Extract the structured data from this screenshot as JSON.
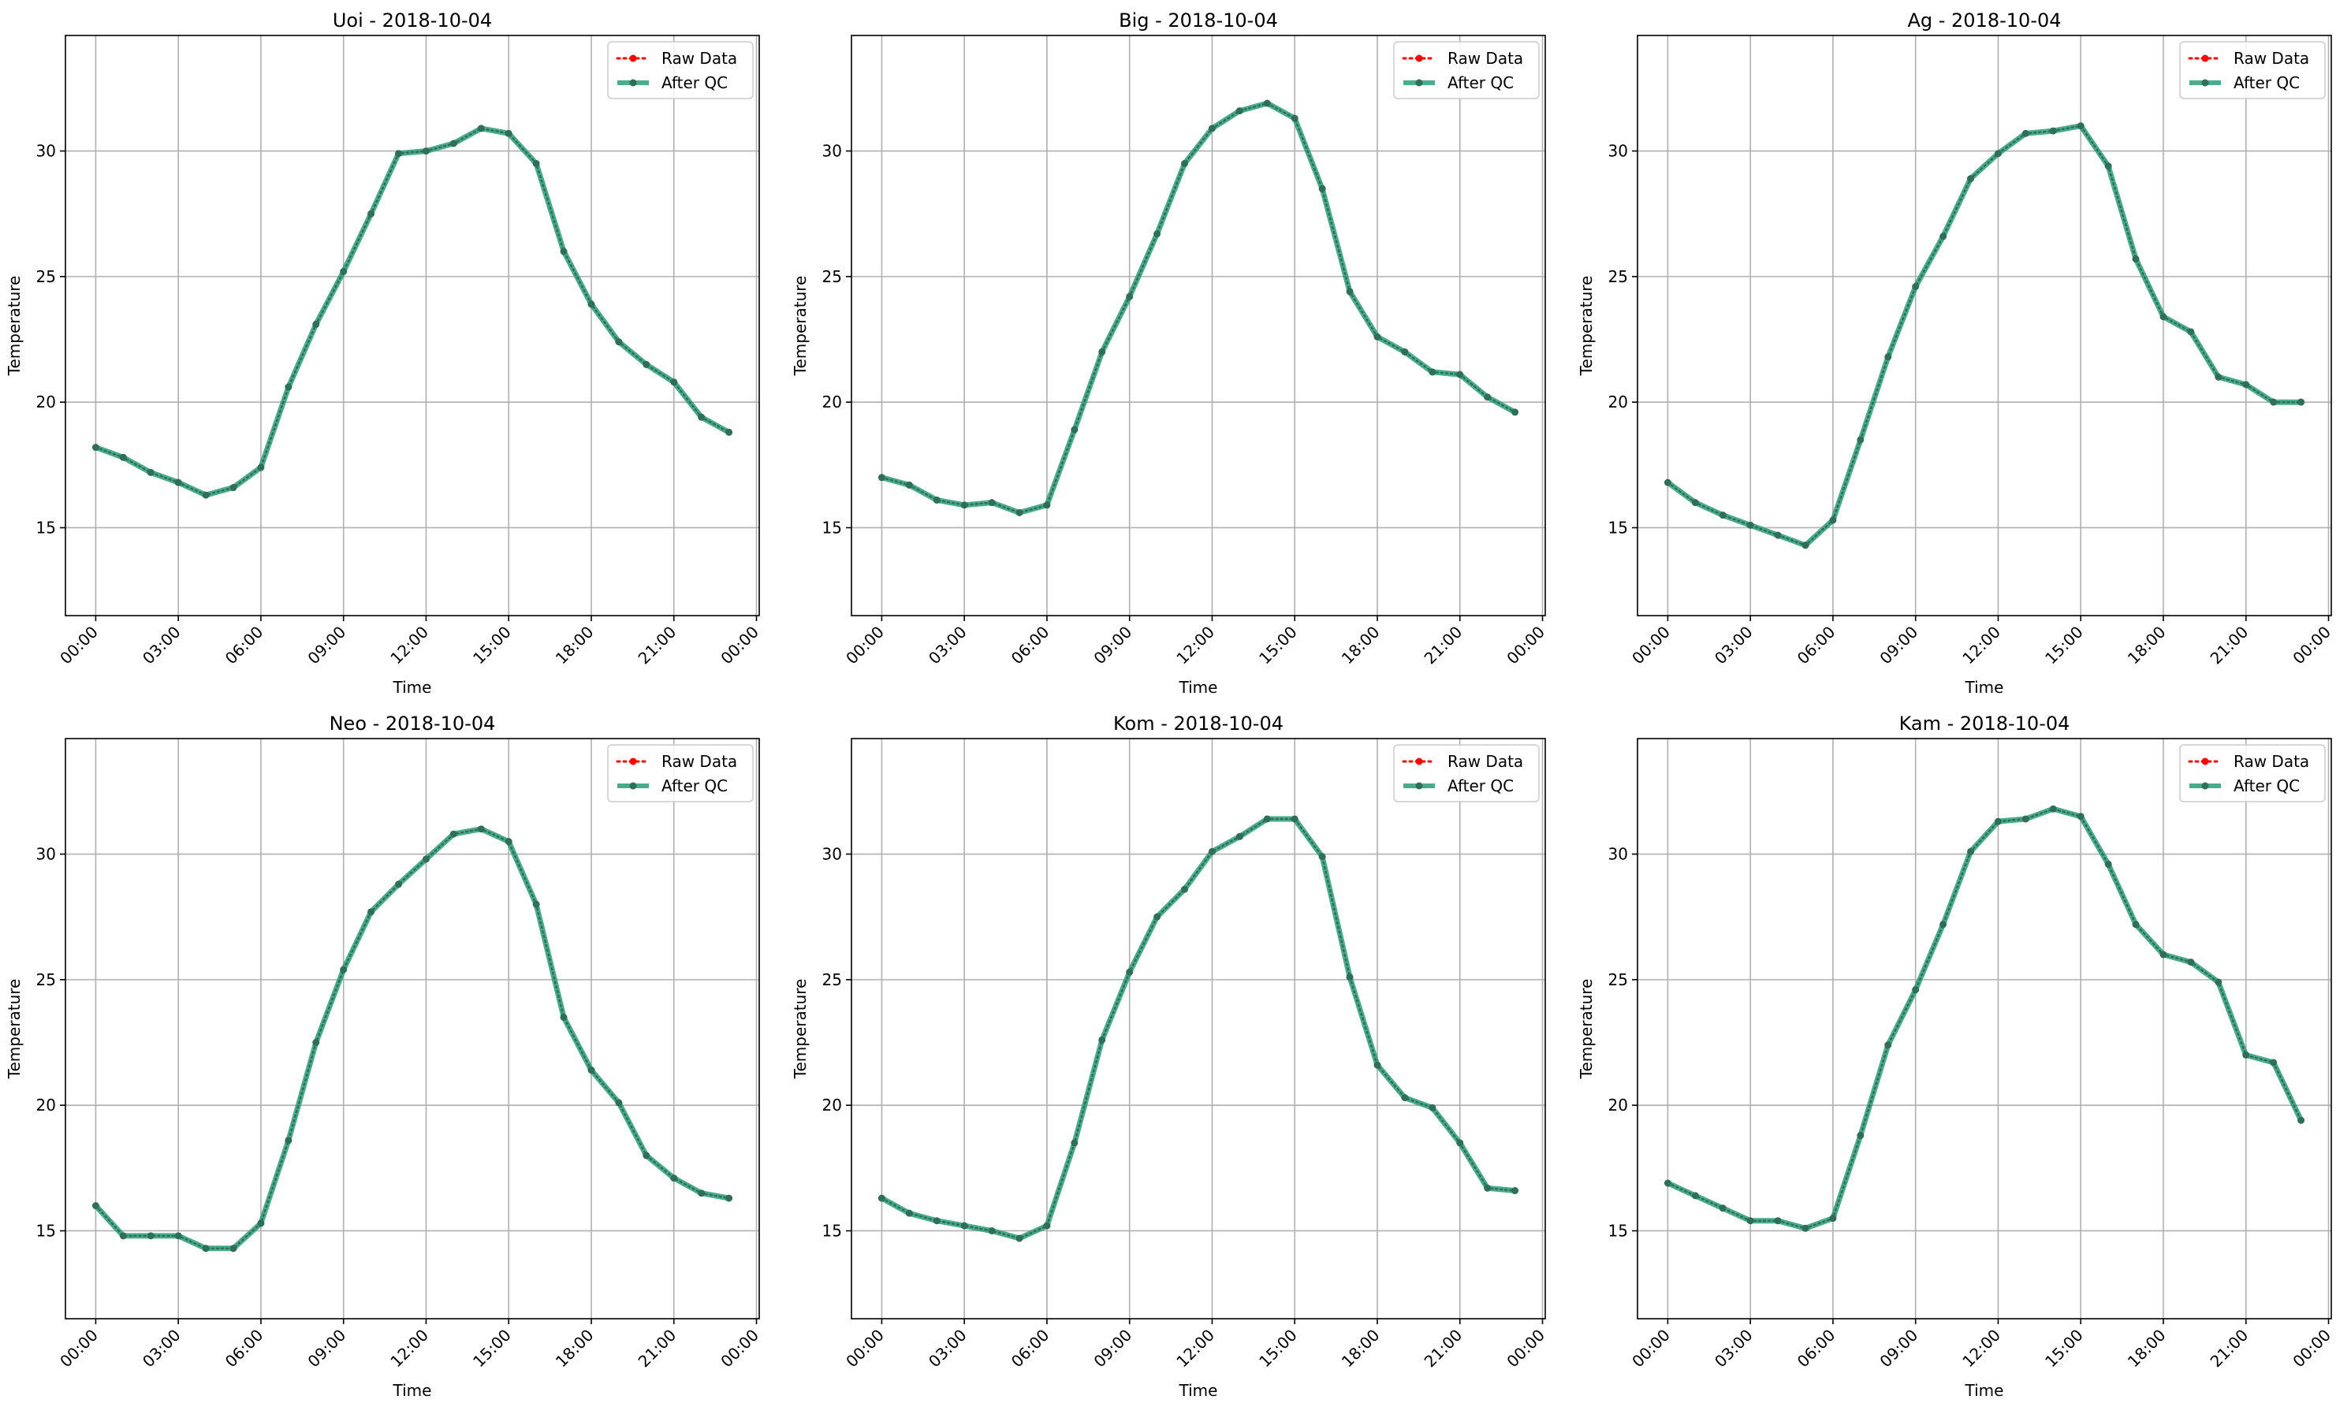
{
  "figure": {
    "style": {
      "raw_color": "#ff0000",
      "qc_color": "#2a9d78",
      "marker_color": "#2f6f5a",
      "grid_color": "#b0b0b0"
    }
  },
  "chart_data": [
    {
      "type": "line",
      "title": "Uoi - 2018-10-04",
      "xlabel": "Time",
      "ylabel": "Temperature",
      "x_unit": "hour",
      "xlim": [
        -1.1,
        24.1
      ],
      "ylim": [
        11.5,
        34.6
      ],
      "xtick_values": [
        0,
        3,
        6,
        9,
        12,
        15,
        18,
        21,
        24
      ],
      "xticks": [
        "00:00",
        "03:00",
        "06:00",
        "09:00",
        "12:00",
        "15:00",
        "18:00",
        "21:00",
        "00:00"
      ],
      "yticks": [
        15,
        20,
        25,
        30
      ],
      "grid": true,
      "legend": "top-right",
      "x": [
        0,
        1,
        2,
        3,
        4,
        5,
        6,
        7,
        8,
        9,
        10,
        11,
        12,
        13,
        14,
        15,
        16,
        17,
        18,
        19,
        20,
        21,
        22,
        23
      ],
      "series": [
        {
          "name": "Raw Data",
          "style": "dotted",
          "values": [
            18.2,
            17.8,
            17.2,
            16.8,
            16.3,
            16.6,
            17.4,
            20.6,
            23.1,
            25.2,
            27.5,
            29.9,
            30.0,
            30.3,
            30.9,
            30.7,
            29.5,
            26.0,
            23.9,
            22.4,
            21.5,
            20.8,
            19.4,
            18.8
          ]
        },
        {
          "name": "After QC",
          "style": "solid",
          "values": [
            18.2,
            17.8,
            17.2,
            16.8,
            16.3,
            16.6,
            17.4,
            20.6,
            23.1,
            25.2,
            27.5,
            29.9,
            30.0,
            30.3,
            30.9,
            30.7,
            29.5,
            26.0,
            23.9,
            22.4,
            21.5,
            20.8,
            19.4,
            18.8
          ]
        }
      ]
    },
    {
      "type": "line",
      "title": "Big - 2018-10-04",
      "xlabel": "Time",
      "ylabel": "Temperature",
      "x_unit": "hour",
      "xlim": [
        -1.1,
        24.1
      ],
      "ylim": [
        11.5,
        34.6
      ],
      "xtick_values": [
        0,
        3,
        6,
        9,
        12,
        15,
        18,
        21,
        24
      ],
      "xticks": [
        "00:00",
        "03:00",
        "06:00",
        "09:00",
        "12:00",
        "15:00",
        "18:00",
        "21:00",
        "00:00"
      ],
      "yticks": [
        15,
        20,
        25,
        30
      ],
      "grid": true,
      "legend": "top-right",
      "x": [
        0,
        1,
        2,
        3,
        4,
        5,
        6,
        7,
        8,
        9,
        10,
        11,
        12,
        13,
        14,
        15,
        16,
        17,
        18,
        19,
        20,
        21,
        22,
        23
      ],
      "series": [
        {
          "name": "Raw Data",
          "style": "dotted",
          "values": [
            17.0,
            16.7,
            16.1,
            15.9,
            16.0,
            15.6,
            15.9,
            18.9,
            22.0,
            24.2,
            26.7,
            29.5,
            30.9,
            31.6,
            31.9,
            31.3,
            28.5,
            24.4,
            22.6,
            22.0,
            21.2,
            21.1,
            20.2,
            19.6
          ]
        },
        {
          "name": "After QC",
          "style": "solid",
          "values": [
            17.0,
            16.7,
            16.1,
            15.9,
            16.0,
            15.6,
            15.9,
            18.9,
            22.0,
            24.2,
            26.7,
            29.5,
            30.9,
            31.6,
            31.9,
            31.3,
            28.5,
            24.4,
            22.6,
            22.0,
            21.2,
            21.1,
            20.2,
            19.6
          ]
        }
      ]
    },
    {
      "type": "line",
      "title": "Ag - 2018-10-04",
      "xlabel": "Time",
      "ylabel": "Temperature",
      "x_unit": "hour",
      "xlim": [
        -1.1,
        24.1
      ],
      "ylim": [
        11.5,
        34.6
      ],
      "xtick_values": [
        0,
        3,
        6,
        9,
        12,
        15,
        18,
        21,
        24
      ],
      "xticks": [
        "00:00",
        "03:00",
        "06:00",
        "09:00",
        "12:00",
        "15:00",
        "18:00",
        "21:00",
        "00:00"
      ],
      "yticks": [
        15,
        20,
        25,
        30
      ],
      "grid": true,
      "legend": "top-right",
      "x": [
        0,
        1,
        2,
        3,
        4,
        5,
        6,
        7,
        8,
        9,
        10,
        11,
        12,
        13,
        14,
        15,
        16,
        17,
        18,
        19,
        20,
        21,
        22,
        23
      ],
      "series": [
        {
          "name": "Raw Data",
          "style": "dotted",
          "values": [
            16.8,
            16.0,
            15.5,
            15.1,
            14.7,
            14.3,
            15.3,
            18.5,
            21.8,
            24.6,
            26.6,
            28.9,
            29.9,
            30.7,
            30.8,
            31.0,
            29.4,
            25.7,
            23.4,
            22.8,
            21.0,
            20.7,
            20.0,
            20.0
          ]
        },
        {
          "name": "After QC",
          "style": "solid",
          "values": [
            16.8,
            16.0,
            15.5,
            15.1,
            14.7,
            14.3,
            15.3,
            18.5,
            21.8,
            24.6,
            26.6,
            28.9,
            29.9,
            30.7,
            30.8,
            31.0,
            29.4,
            25.7,
            23.4,
            22.8,
            21.0,
            20.7,
            20.0,
            20.0
          ]
        }
      ]
    },
    {
      "type": "line",
      "title": "Neo - 2018-10-04",
      "xlabel": "Time",
      "ylabel": "Temperature",
      "x_unit": "hour",
      "xlim": [
        -1.1,
        24.1
      ],
      "ylim": [
        11.5,
        34.6
      ],
      "xtick_values": [
        0,
        3,
        6,
        9,
        12,
        15,
        18,
        21,
        24
      ],
      "xticks": [
        "00:00",
        "03:00",
        "06:00",
        "09:00",
        "12:00",
        "15:00",
        "18:00",
        "21:00",
        "00:00"
      ],
      "yticks": [
        15,
        20,
        25,
        30
      ],
      "grid": true,
      "legend": "top-right",
      "x": [
        0,
        1,
        2,
        3,
        4,
        5,
        6,
        7,
        8,
        9,
        10,
        11,
        12,
        13,
        14,
        15,
        16,
        17,
        18,
        19,
        20,
        21,
        22,
        23
      ],
      "series": [
        {
          "name": "Raw Data",
          "style": "dotted",
          "values": [
            16.0,
            14.8,
            14.8,
            14.8,
            14.3,
            14.3,
            15.3,
            18.6,
            22.5,
            25.4,
            27.7,
            28.8,
            29.8,
            30.8,
            31.0,
            30.5,
            28.0,
            23.5,
            21.4,
            20.1,
            18.0,
            17.1,
            16.5,
            16.3
          ]
        },
        {
          "name": "After QC",
          "style": "solid",
          "values": [
            16.0,
            14.8,
            14.8,
            14.8,
            14.3,
            14.3,
            15.3,
            18.6,
            22.5,
            25.4,
            27.7,
            28.8,
            29.8,
            30.8,
            31.0,
            30.5,
            28.0,
            23.5,
            21.4,
            20.1,
            18.0,
            17.1,
            16.5,
            16.3
          ]
        }
      ]
    },
    {
      "type": "line",
      "title": "Kom - 2018-10-04",
      "xlabel": "Time",
      "ylabel": "Temperature",
      "x_unit": "hour",
      "xlim": [
        -1.1,
        24.1
      ],
      "ylim": [
        11.5,
        34.6
      ],
      "xtick_values": [
        0,
        3,
        6,
        9,
        12,
        15,
        18,
        21,
        24
      ],
      "xticks": [
        "00:00",
        "03:00",
        "06:00",
        "09:00",
        "12:00",
        "15:00",
        "18:00",
        "21:00",
        "00:00"
      ],
      "yticks": [
        15,
        20,
        25,
        30
      ],
      "grid": true,
      "legend": "top-right",
      "x": [
        0,
        1,
        2,
        3,
        4,
        5,
        6,
        7,
        8,
        9,
        10,
        11,
        12,
        13,
        14,
        15,
        16,
        17,
        18,
        19,
        20,
        21,
        22,
        23
      ],
      "series": [
        {
          "name": "Raw Data",
          "style": "dotted",
          "values": [
            16.3,
            15.7,
            15.4,
            15.2,
            15.0,
            14.7,
            15.2,
            18.5,
            22.6,
            25.3,
            27.5,
            28.6,
            30.1,
            30.7,
            31.4,
            31.4,
            29.9,
            25.1,
            21.6,
            20.3,
            19.9,
            18.5,
            16.7,
            16.6
          ]
        },
        {
          "name": "After QC",
          "style": "solid",
          "values": [
            16.3,
            15.7,
            15.4,
            15.2,
            15.0,
            14.7,
            15.2,
            18.5,
            22.6,
            25.3,
            27.5,
            28.6,
            30.1,
            30.7,
            31.4,
            31.4,
            29.9,
            25.1,
            21.6,
            20.3,
            19.9,
            18.5,
            16.7,
            16.6
          ]
        }
      ]
    },
    {
      "type": "line",
      "title": "Kam - 2018-10-04",
      "xlabel": "Time",
      "ylabel": "Temperature",
      "x_unit": "hour",
      "xlim": [
        -1.1,
        24.1
      ],
      "ylim": [
        11.5,
        34.6
      ],
      "xtick_values": [
        0,
        3,
        6,
        9,
        12,
        15,
        18,
        21,
        24
      ],
      "xticks": [
        "00:00",
        "03:00",
        "06:00",
        "09:00",
        "12:00",
        "15:00",
        "18:00",
        "21:00",
        "00:00"
      ],
      "yticks": [
        15,
        20,
        25,
        30
      ],
      "grid": true,
      "legend": "top-right",
      "x": [
        0,
        1,
        2,
        3,
        4,
        5,
        6,
        7,
        8,
        9,
        10,
        11,
        12,
        13,
        14,
        15,
        16,
        17,
        18,
        19,
        20,
        21,
        22,
        23
      ],
      "series": [
        {
          "name": "Raw Data",
          "style": "dotted",
          "values": [
            16.9,
            16.4,
            15.9,
            15.4,
            15.4,
            15.1,
            15.5,
            18.8,
            22.4,
            24.6,
            27.2,
            30.1,
            31.3,
            31.4,
            31.8,
            31.5,
            29.6,
            27.2,
            26.0,
            25.7,
            24.9,
            22.0,
            21.7,
            19.4
          ]
        },
        {
          "name": "After QC",
          "style": "solid",
          "values": [
            16.9,
            16.4,
            15.9,
            15.4,
            15.4,
            15.1,
            15.5,
            18.8,
            22.4,
            24.6,
            27.2,
            30.1,
            31.3,
            31.4,
            31.8,
            31.5,
            29.6,
            27.2,
            26.0,
            25.7,
            24.9,
            22.0,
            21.7,
            19.4
          ]
        }
      ]
    }
  ]
}
